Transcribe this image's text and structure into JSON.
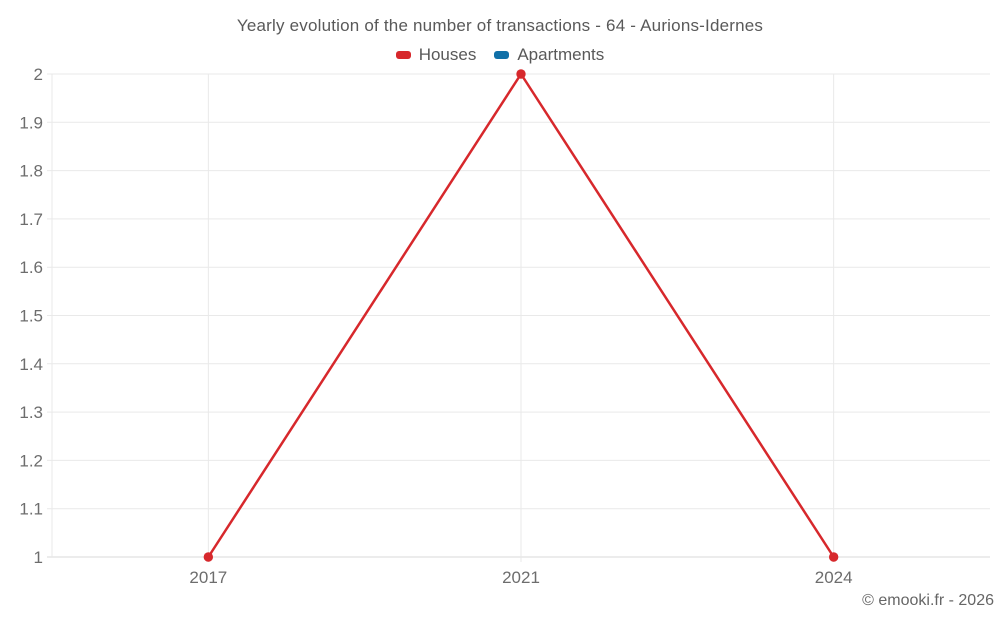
{
  "header": {
    "title": "Yearly evolution of the number of transactions - 64 - Aurions-Idernes"
  },
  "legend": {
    "items": [
      {
        "label": "Houses",
        "color": "#d7282c"
      },
      {
        "label": "Apartments",
        "color": "#1170a8"
      }
    ]
  },
  "footer": {
    "copyright": "© emooki.fr - 2026"
  },
  "chart_data": {
    "type": "line",
    "title": "Yearly evolution of the number of transactions - 64 - Aurions-Idernes",
    "categories": [
      "2017",
      "2021",
      "2024"
    ],
    "series": [
      {
        "name": "Houses",
        "color": "#d7282c",
        "values": [
          1,
          2,
          1
        ]
      },
      {
        "name": "Apartments",
        "color": "#1170a8",
        "values": []
      }
    ],
    "xlabel": "",
    "ylabel": "",
    "ylim": [
      1,
      2
    ],
    "y_ticks": [
      1,
      1.1,
      1.2,
      1.3,
      1.4,
      1.5,
      1.6,
      1.7,
      1.8,
      1.9,
      2
    ],
    "grid": true,
    "legend_position": "top",
    "colors": {
      "grid": "#e9e9e9",
      "axis": "#d9d9d9",
      "tick_text": "#6d6d6d"
    }
  }
}
